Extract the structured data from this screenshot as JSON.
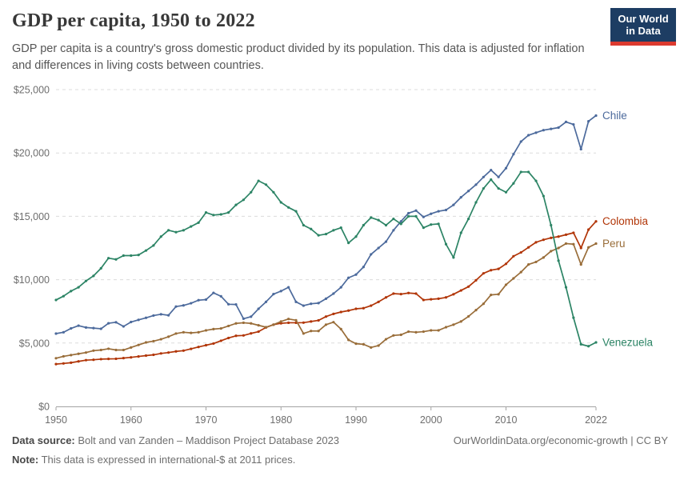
{
  "header": {
    "title": "GDP per capita, 1950 to 2022",
    "subtitle": "GDP per capita is a country's gross domestic product divided by its population. This data is adjusted for inflation and differences in living costs between countries.",
    "logo": {
      "line1": "Our World",
      "line2": "in Data",
      "bg_color": "#1d3d63",
      "stripe_color": "#dc3a2f"
    }
  },
  "chart_data": {
    "type": "line",
    "title": "GDP per capita, 1950 to 2022",
    "xlabel": "",
    "ylabel": "",
    "xlim": [
      1950,
      2022
    ],
    "ylim": [
      0,
      25000
    ],
    "x_ticks": [
      1950,
      1960,
      1970,
      1980,
      1990,
      2000,
      2010,
      2022
    ],
    "y_ticks": [
      {
        "value": 0,
        "label": "$0"
      },
      {
        "value": 5000,
        "label": "$5,000"
      },
      {
        "value": 10000,
        "label": "$10,000"
      },
      {
        "value": 15000,
        "label": "$15,000"
      },
      {
        "value": 20000,
        "label": "$20,000"
      },
      {
        "value": 25000,
        "label": "$25,000"
      }
    ],
    "grid": "horizontal-dashed",
    "legend_position": "end-of-line-labels",
    "unit": "international-$ at 2011 prices",
    "years": [
      1950,
      1951,
      1952,
      1953,
      1954,
      1955,
      1956,
      1957,
      1958,
      1959,
      1960,
      1961,
      1962,
      1963,
      1964,
      1965,
      1966,
      1967,
      1968,
      1969,
      1970,
      1971,
      1972,
      1973,
      1974,
      1975,
      1976,
      1977,
      1978,
      1979,
      1980,
      1981,
      1982,
      1983,
      1984,
      1985,
      1986,
      1987,
      1988,
      1989,
      1990,
      1991,
      1992,
      1993,
      1994,
      1995,
      1996,
      1997,
      1998,
      1999,
      2000,
      2001,
      2002,
      2003,
      2004,
      2005,
      2006,
      2007,
      2008,
      2009,
      2010,
      2011,
      2012,
      2013,
      2014,
      2015,
      2016,
      2017,
      2018,
      2019,
      2020,
      2021,
      2022
    ],
    "series": [
      {
        "name": "Chile",
        "color": "#4C6A9C",
        "values": [
          5744,
          5851,
          6153,
          6372,
          6227,
          6181,
          6127,
          6560,
          6640,
          6310,
          6660,
          6830,
          6990,
          7170,
          7270,
          7190,
          7880,
          7970,
          8140,
          8380,
          8430,
          8960,
          8690,
          8060,
          8040,
          6920,
          7080,
          7700,
          8250,
          8860,
          9100,
          9400,
          8250,
          7950,
          8100,
          8150,
          8500,
          8900,
          9400,
          10150,
          10400,
          11000,
          12000,
          12500,
          13000,
          13900,
          14600,
          15250,
          15450,
          14950,
          15200,
          15400,
          15500,
          15900,
          16500,
          17000,
          17500,
          18100,
          18650,
          18100,
          18800,
          19900,
          20900,
          21400,
          21600,
          21800,
          21900,
          22000,
          22450,
          22250,
          20300,
          22500,
          22950
        ]
      },
      {
        "name": "Colombia",
        "color": "#B13507",
        "values": [
          3340,
          3390,
          3450,
          3550,
          3650,
          3680,
          3730,
          3750,
          3760,
          3810,
          3870,
          3940,
          4010,
          4070,
          4180,
          4250,
          4340,
          4400,
          4540,
          4690,
          4830,
          4960,
          5180,
          5400,
          5570,
          5600,
          5760,
          5900,
          6230,
          6450,
          6560,
          6600,
          6600,
          6610,
          6700,
          6790,
          7090,
          7300,
          7450,
          7560,
          7700,
          7750,
          7950,
          8250,
          8600,
          8900,
          8860,
          8950,
          8900,
          8400,
          8450,
          8500,
          8600,
          8850,
          9150,
          9450,
          9950,
          10500,
          10750,
          10850,
          11250,
          11850,
          12150,
          12550,
          12950,
          13150,
          13300,
          13400,
          13550,
          13700,
          12500,
          13950,
          14600
        ]
      },
      {
        "name": "Peru",
        "color": "#996D39",
        "values": [
          3800,
          3950,
          4050,
          4150,
          4250,
          4400,
          4450,
          4550,
          4450,
          4450,
          4650,
          4850,
          5050,
          5150,
          5300,
          5500,
          5750,
          5850,
          5800,
          5850,
          6000,
          6100,
          6150,
          6350,
          6550,
          6600,
          6550,
          6400,
          6250,
          6450,
          6700,
          6900,
          6800,
          5750,
          5950,
          5950,
          6450,
          6650,
          6100,
          5250,
          4950,
          4900,
          4650,
          4800,
          5300,
          5600,
          5650,
          5900,
          5850,
          5900,
          6000,
          6000,
          6250,
          6450,
          6700,
          7100,
          7600,
          8100,
          8800,
          8850,
          9600,
          10100,
          10600,
          11200,
          11400,
          11750,
          12250,
          12500,
          12850,
          12800,
          11200,
          12550,
          12850
        ]
      },
      {
        "name": "Venezuela",
        "color": "#2C8465",
        "values": [
          8400,
          8700,
          9100,
          9400,
          9900,
          10300,
          10900,
          11700,
          11600,
          11900,
          11900,
          11950,
          12300,
          12700,
          13400,
          13900,
          13750,
          13900,
          14200,
          14500,
          15300,
          15100,
          15150,
          15300,
          15900,
          16300,
          16900,
          17800,
          17500,
          16900,
          16100,
          15700,
          15400,
          14300,
          14000,
          13500,
          13600,
          13900,
          14100,
          12900,
          13400,
          14300,
          14900,
          14700,
          14300,
          14800,
          14400,
          15000,
          15000,
          14100,
          14350,
          14400,
          12800,
          11750,
          13700,
          14800,
          16100,
          17200,
          17900,
          17200,
          16900,
          17600,
          18500,
          18500,
          17800,
          16600,
          14300,
          11500,
          9400,
          7000,
          4900,
          4750,
          5050
        ]
      }
    ]
  },
  "footer": {
    "source_label": "Data source:",
    "source_text": " Bolt and van Zanden – Maddison Project Database 2023",
    "note_label": "Note:",
    "note_text": " This data is expressed in international-$ at 2011 prices.",
    "right_text": "OurWorldinData.org/economic-growth | CC BY"
  }
}
